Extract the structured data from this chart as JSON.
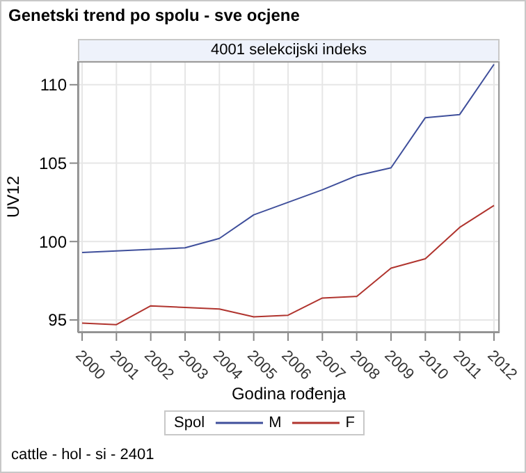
{
  "chart_data": {
    "type": "line",
    "title": "Genetski trend po spolu - sve ocjene",
    "subtitle": "4001 selekcijski indeks",
    "xlabel": "Godina rođenja",
    "ylabel": "UV12",
    "legend_title": "Spol",
    "categories": [
      "2000",
      "2001",
      "2002",
      "2003",
      "2004",
      "2005",
      "2006",
      "2007",
      "2008",
      "2009",
      "2010",
      "2011",
      "2012"
    ],
    "series": [
      {
        "name": "M",
        "color": "#3f4f9b",
        "values": [
          99.3,
          99.4,
          99.5,
          99.6,
          100.2,
          101.7,
          102.5,
          103.3,
          104.2,
          104.7,
          107.9,
          108.1,
          111.3
        ]
      },
      {
        "name": "F",
        "color": "#b0342e",
        "values": [
          94.8,
          94.7,
          95.9,
          95.8,
          95.7,
          95.2,
          95.3,
          96.4,
          96.5,
          98.3,
          98.9,
          100.9,
          102.3
        ]
      }
    ],
    "ylim": [
      94.2,
      111.5
    ],
    "yticks": [
      95,
      100,
      105,
      110
    ],
    "grid": true,
    "legend": "bottom",
    "marker": "none",
    "line_style": "solid",
    "annotations": [
      "cattle - hol - si - 2401"
    ]
  }
}
